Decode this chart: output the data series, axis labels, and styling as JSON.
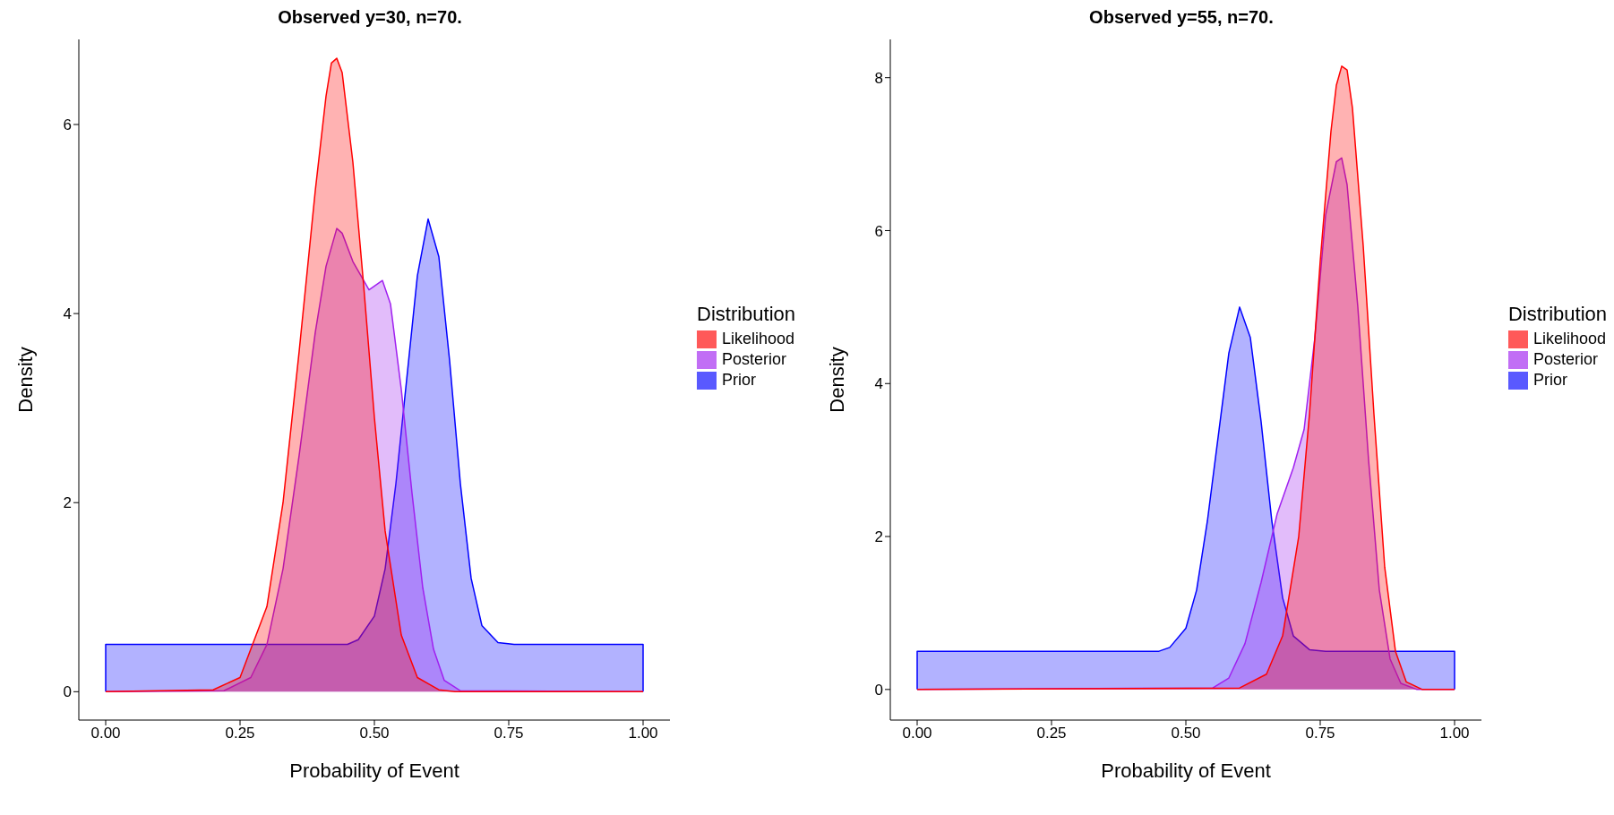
{
  "chart_data": [
    {
      "type": "area",
      "title": "Observed y=30, n=70.",
      "xlabel": "Probability of Event",
      "ylabel": "Density",
      "legend_title": "Distribution",
      "legend": "right",
      "grid": false,
      "xlim": [
        -0.05,
        1.05
      ],
      "ylim": [
        -0.3,
        6.9
      ],
      "xticks": [
        {
          "value": 0,
          "label": "0.00"
        },
        {
          "value": 0.25,
          "label": "0.25"
        },
        {
          "value": 0.5,
          "label": "0.50"
        },
        {
          "value": 0.75,
          "label": "0.75"
        },
        {
          "value": 1,
          "label": "1.00"
        }
      ],
      "yticks": [
        0,
        2,
        4,
        6
      ],
      "series": [
        {
          "name": "Likelihood",
          "color": "#ff0000",
          "x": [
            0,
            0.2,
            0.25,
            0.3,
            0.33,
            0.36,
            0.39,
            0.41,
            0.42,
            0.43,
            0.44,
            0.46,
            0.48,
            0.5,
            0.52,
            0.55,
            0.58,
            0.62,
            0.65,
            1
          ],
          "values": [
            0,
            0.02,
            0.15,
            0.9,
            2.0,
            3.6,
            5.3,
            6.3,
            6.65,
            6.7,
            6.55,
            5.6,
            4.3,
            2.9,
            1.7,
            0.6,
            0.15,
            0.02,
            0,
            0
          ]
        },
        {
          "name": "Posterior",
          "color": "#a020f0",
          "x": [
            0,
            0.22,
            0.27,
            0.3,
            0.33,
            0.36,
            0.39,
            0.41,
            0.43,
            0.44,
            0.46,
            0.49,
            0.515,
            0.53,
            0.55,
            0.57,
            0.59,
            0.61,
            0.63,
            0.66,
            1
          ],
          "values": [
            0,
            0.01,
            0.15,
            0.5,
            1.3,
            2.5,
            3.8,
            4.5,
            4.9,
            4.85,
            4.55,
            4.25,
            4.35,
            4.1,
            3.2,
            2.1,
            1.1,
            0.45,
            0.12,
            0.01,
            0
          ]
        },
        {
          "name": "Prior",
          "color": "#0000ff",
          "x": [
            0,
            0,
            0.45,
            0.47,
            0.5,
            0.52,
            0.54,
            0.56,
            0.58,
            0.6,
            0.62,
            0.64,
            0.66,
            0.68,
            0.7,
            0.73,
            0.76,
            1,
            1
          ],
          "values": [
            0,
            0.5,
            0.5,
            0.55,
            0.8,
            1.3,
            2.2,
            3.3,
            4.4,
            5.0,
            4.6,
            3.5,
            2.2,
            1.2,
            0.7,
            0.52,
            0.5,
            0.5,
            0
          ]
        }
      ]
    },
    {
      "type": "area",
      "title": "Observed y=55, n=70.",
      "xlabel": "Probability of Event",
      "ylabel": "Density",
      "legend_title": "Distribution",
      "legend": "right",
      "grid": false,
      "xlim": [
        -0.05,
        1.05
      ],
      "ylim": [
        -0.4,
        8.5
      ],
      "xticks": [
        {
          "value": 0,
          "label": "0.00"
        },
        {
          "value": 0.25,
          "label": "0.25"
        },
        {
          "value": 0.5,
          "label": "0.50"
        },
        {
          "value": 0.75,
          "label": "0.75"
        },
        {
          "value": 1,
          "label": "1.00"
        }
      ],
      "yticks": [
        0,
        2,
        4,
        6,
        8
      ],
      "series": [
        {
          "name": "Likelihood",
          "color": "#ff0000",
          "x": [
            0,
            0.6,
            0.65,
            0.68,
            0.71,
            0.73,
            0.75,
            0.77,
            0.78,
            0.79,
            0.8,
            0.81,
            0.83,
            0.85,
            0.87,
            0.89,
            0.91,
            0.94,
            1
          ],
          "values": [
            0,
            0.02,
            0.2,
            0.7,
            2.0,
            3.6,
            5.6,
            7.3,
            7.9,
            8.15,
            8.1,
            7.6,
            5.8,
            3.6,
            1.6,
            0.5,
            0.1,
            0,
            0
          ]
        },
        {
          "name": "Posterior",
          "color": "#a020f0",
          "x": [
            0,
            0.55,
            0.58,
            0.61,
            0.64,
            0.67,
            0.7,
            0.72,
            0.74,
            0.76,
            0.78,
            0.79,
            0.8,
            0.82,
            0.84,
            0.86,
            0.88,
            0.9,
            0.93,
            1
          ],
          "values": [
            0,
            0.02,
            0.15,
            0.6,
            1.4,
            2.3,
            2.9,
            3.4,
            4.6,
            6.2,
            6.9,
            6.95,
            6.6,
            5.0,
            3.0,
            1.3,
            0.4,
            0.08,
            0,
            0
          ]
        },
        {
          "name": "Prior",
          "color": "#0000ff",
          "x": [
            0,
            0,
            0.45,
            0.47,
            0.5,
            0.52,
            0.54,
            0.56,
            0.58,
            0.6,
            0.62,
            0.64,
            0.66,
            0.68,
            0.7,
            0.73,
            0.76,
            1,
            1
          ],
          "values": [
            0,
            0.5,
            0.5,
            0.55,
            0.8,
            1.3,
            2.2,
            3.3,
            4.4,
            5.0,
            4.6,
            3.5,
            2.2,
            1.2,
            0.7,
            0.52,
            0.5,
            0.5,
            0
          ]
        }
      ]
    }
  ]
}
